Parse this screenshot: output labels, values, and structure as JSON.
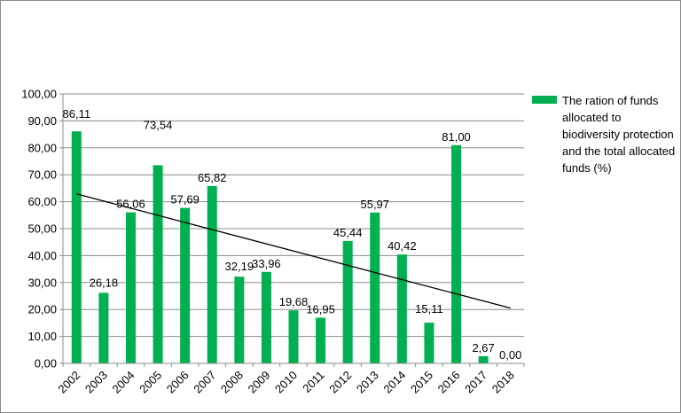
{
  "chart_data": {
    "type": "bar",
    "categories": [
      "2002",
      "2003",
      "2004",
      "2005",
      "2006",
      "2007",
      "2008",
      "2009",
      "2010",
      "2011",
      "2012",
      "2013",
      "2014",
      "2015",
      "2016",
      "2017",
      "2018"
    ],
    "series": [
      {
        "name": "The ration of funds allocated to biodiversity protection and the total allocated funds (%)",
        "values": [
          86.11,
          26.18,
          56.06,
          73.54,
          57.69,
          65.82,
          32.19,
          33.96,
          19.68,
          16.95,
          45.44,
          55.97,
          40.42,
          15.11,
          81.0,
          2.67,
          0.0
        ],
        "data_labels": [
          "86,11",
          "26,18",
          "56,06",
          "73,54",
          "57,69",
          "65,82",
          "32,19",
          "33,96",
          "19,68",
          "16,95",
          "45,44",
          "55,97",
          "40,42",
          "15,11",
          "81,00",
          "2,67",
          "0,00"
        ]
      }
    ],
    "trendline": {
      "type": "linear",
      "start_value": 62.9,
      "end_value": 20.5
    },
    "ylim": [
      0,
      100
    ],
    "yticks": [
      0,
      10,
      20,
      30,
      40,
      50,
      60,
      70,
      80,
      90,
      100
    ],
    "ytick_labels": [
      "0,00",
      "10,00",
      "20,00",
      "30,00",
      "40,00",
      "50,00",
      "60,00",
      "70,00",
      "80,00",
      "90,00",
      "100,00"
    ],
    "grid": true,
    "legend_position": "right",
    "xlabel": "",
    "ylabel": "",
    "title": ""
  },
  "colors": {
    "bar": "#00b050",
    "grid": "#8c8c8c",
    "trendline": "#000000"
  }
}
